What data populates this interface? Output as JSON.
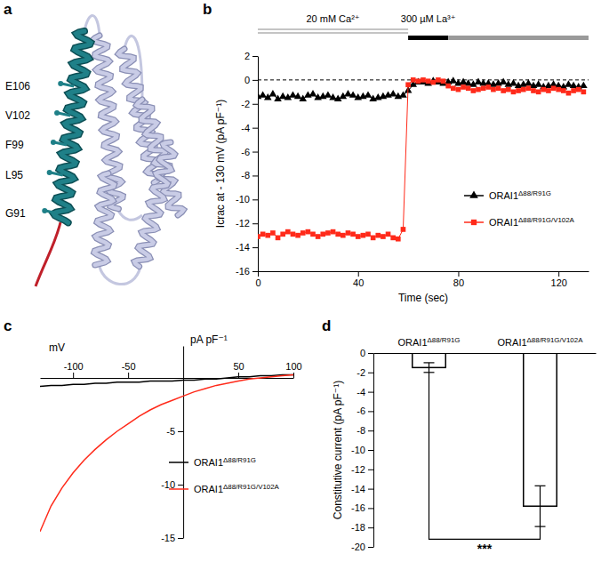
{
  "chart_data": [
    {
      "type": "structure",
      "panel": "a",
      "labels": [
        "E106",
        "V102",
        "F99",
        "L95",
        "G91"
      ]
    },
    {
      "type": "line",
      "panel": "b",
      "xlabel": "Time (sec)",
      "ylabel": "Icrac at - 130 mV (pA pF⁻¹)",
      "x": [
        0,
        2,
        4,
        6,
        8,
        10,
        12,
        14,
        16,
        18,
        20,
        22,
        24,
        26,
        28,
        30,
        32,
        34,
        36,
        38,
        40,
        42,
        44,
        46,
        48,
        50,
        52,
        54,
        56,
        58,
        60,
        62,
        64,
        66,
        68,
        70,
        72,
        74,
        76,
        78,
        80,
        82,
        84,
        86,
        88,
        90,
        92,
        94,
        96,
        98,
        100,
        102,
        104,
        106,
        108,
        110,
        112,
        114,
        116,
        118,
        120,
        122,
        124,
        126,
        128,
        130
      ],
      "series": [
        {
          "name": "ORAI1Δ88/R91G",
          "color": "#000000",
          "marker": "triangle",
          "values": [
            -1.4,
            -1.3,
            -1.5,
            -1.2,
            -1.6,
            -1.4,
            -1.5,
            -1.3,
            -1.4,
            -1.6,
            -1.3,
            -1.2,
            -1.5,
            -1.4,
            -1.3,
            -1.5,
            -1.6,
            -1.4,
            -1.2,
            -1.3,
            -1.5,
            -1.4,
            -1.3,
            -1.6,
            -1.5,
            -1.4,
            -1.3,
            -1.2,
            -1.4,
            -1.3,
            -0.9,
            -0.4,
            -0.2,
            -0.2,
            -0.3,
            -0.1,
            -0.2,
            -0.3,
            -0.2,
            -0.1,
            -0.3,
            -0.2,
            -0.3,
            -0.4,
            -0.2,
            -0.3,
            -0.3,
            -0.4,
            -0.3,
            -0.2,
            -0.4,
            -0.3,
            -0.5,
            -0.4,
            -0.3,
            -0.5,
            -0.4,
            -0.6,
            -0.5,
            -0.4,
            -0.5,
            -0.6,
            -0.4,
            -0.5,
            -0.6,
            -0.5
          ]
        },
        {
          "name": "ORAI1Δ88/R91G/V102A",
          "color": "#ff2a1a",
          "marker": "square",
          "values": [
            -13.1,
            -12.9,
            -13.0,
            -12.8,
            -13.2,
            -12.9,
            -12.7,
            -12.9,
            -13.0,
            -12.8,
            -12.7,
            -12.9,
            -13.1,
            -12.9,
            -12.8,
            -12.7,
            -12.9,
            -13.0,
            -12.8,
            -12.9,
            -13.1,
            -13.0,
            -12.9,
            -13.2,
            -13.0,
            -13.1,
            -12.9,
            -13.2,
            -13.3,
            -12.5,
            -0.4,
            0,
            -0.1,
            0,
            -0.1,
            -0.2,
            0,
            -0.1,
            -0.5,
            -0.7,
            -0.8,
            -0.6,
            -0.7,
            -0.9,
            -0.8,
            -0.7,
            -0.6,
            -0.8,
            -0.7,
            -0.9,
            -0.8,
            -1.0,
            -0.9,
            -0.8,
            -0.7,
            -0.9,
            -1.0,
            -0.8,
            -0.9,
            -0.7,
            -0.8,
            -0.9,
            -1.1,
            -0.9,
            -0.8,
            -1.0
          ]
        }
      ],
      "xlim": [
        0,
        132
      ],
      "ylim": [
        -16,
        2
      ],
      "xticks": [
        0,
        40,
        80,
        120
      ],
      "yticks": [
        -16,
        -14,
        -12,
        -10,
        -8,
        -6,
        -4,
        -2,
        0,
        2
      ],
      "legend": "lower right",
      "annotations": [
        {
          "text": "20 mM Ca²⁺",
          "x": [
            0,
            60
          ],
          "color": "#b0b0b0",
          "line_style": "double"
        },
        {
          "text": "300 µM La³⁺",
          "x": [
            60,
            76
          ],
          "color": "#000000"
        },
        {
          "x": [
            76,
            132
          ],
          "color": "#9a9a9a"
        },
        {
          "y": 0,
          "line_style": "dashed"
        }
      ]
    },
    {
      "type": "line",
      "panel": "c",
      "xlabel": "mV",
      "ylabel": "pA pF⁻¹",
      "x": [
        -130,
        -120,
        -110,
        -100,
        -90,
        -80,
        -70,
        -60,
        -50,
        -40,
        -30,
        -20,
        -10,
        0,
        10,
        20,
        30,
        40,
        50,
        60,
        70,
        80,
        90,
        100
      ],
      "series": [
        {
          "name": "ORAI1Δ88/R91G",
          "color": "#000000",
          "values": [
            -0.8,
            -0.7,
            -0.7,
            -0.6,
            -0.6,
            -0.5,
            -0.5,
            -0.4,
            -0.4,
            -0.4,
            -0.3,
            -0.3,
            -0.3,
            -0.2,
            -0.2,
            -0.1,
            -0.1,
            0,
            0.1,
            0.1,
            0.2,
            0.2,
            0.3,
            0.3
          ]
        },
        {
          "name": "ORAI1Δ88/R91G/V102A",
          "color": "#ff2a1a",
          "values": [
            -14.4,
            -12.0,
            -10.3,
            -8.9,
            -7.7,
            -6.7,
            -5.8,
            -5.0,
            -4.3,
            -3.6,
            -3.0,
            -2.5,
            -2.1,
            -1.7,
            -1.3,
            -1.0,
            -0.7,
            -0.5,
            -0.3,
            -0.1,
            0,
            0.1,
            0.2,
            0.3
          ]
        }
      ],
      "xlim": [
        -130,
        100
      ],
      "ylim": [
        -15,
        3
      ],
      "xticks": [
        -100,
        -50,
        50,
        100
      ],
      "yticks": [
        -15,
        -10,
        -5
      ],
      "legend": "lower right"
    },
    {
      "type": "bar",
      "panel": "d",
      "ylabel": "Constitutive current (pA pF⁻¹)",
      "categories": [
        "ORAI1Δ88/R91G",
        "ORAI1Δ88/R91G/V102A"
      ],
      "values": [
        -1.5,
        -15.8
      ],
      "errors": [
        0.5,
        2.1
      ],
      "color": "#ffffff",
      "ylim": [
        -20,
        0
      ],
      "yticks": [
        -20,
        -18,
        -16,
        -14,
        -12,
        -10,
        -8,
        -6,
        -4,
        -2,
        0
      ],
      "annotations": [
        {
          "text": "***",
          "between": [
            0,
            1
          ],
          "y": -19.2
        }
      ]
    }
  ]
}
